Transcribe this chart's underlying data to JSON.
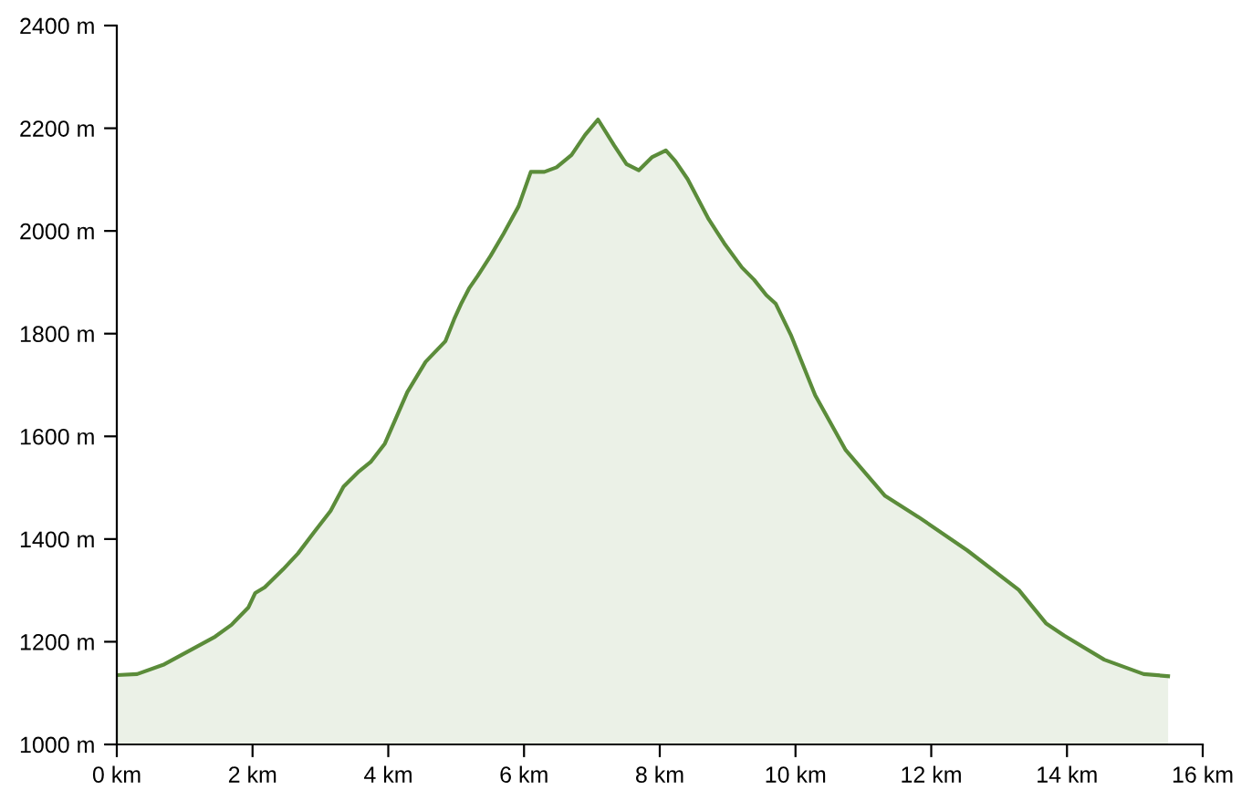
{
  "chart_data": {
    "type": "area",
    "series": [
      {
        "color": "#5b8c3a",
        "x": [
          0,
          0.3,
          0.7,
          1.06,
          1.45,
          1.69,
          1.94,
          2.04,
          2.18,
          2.45,
          2.67,
          2.9,
          3.15,
          3.34,
          3.57,
          3.74,
          3.95,
          4.28,
          4.55,
          4.84,
          4.97,
          5.08,
          5.19,
          5.32,
          5.51,
          5.7,
          5.92,
          6.1,
          6.3,
          6.48,
          6.7,
          6.9,
          7.09,
          7.33,
          7.51,
          7.69,
          7.89,
          8.09,
          8.23,
          8.41,
          8.72,
          8.95,
          9.21,
          9.39,
          9.57,
          9.71,
          9.93,
          10.29,
          10.74,
          11.32,
          11.81,
          12.53,
          13.29,
          13.69,
          13.96,
          14.55,
          15.13,
          15.49
        ],
        "values": [
          1135,
          1137,
          1156,
          1182,
          1210,
          1233,
          1267,
          1295,
          1306,
          1341,
          1372,
          1412,
          1455,
          1502,
          1532,
          1550,
          1586,
          1686,
          1745,
          1785,
          1828,
          1860,
          1888,
          1913,
          1952,
          1995,
          2048,
          2115,
          2115,
          2124,
          2148,
          2187,
          2217,
          2166,
          2130,
          2118,
          2144,
          2157,
          2136,
          2101,
          2023,
          1976,
          1929,
          1905,
          1875,
          1858,
          1798,
          1680,
          1573,
          1484,
          1443,
          1378,
          1301,
          1236,
          1212,
          1165,
          1137,
          1133
        ]
      }
    ],
    "xlim": [
      0,
      16
    ],
    "xticks": [
      {
        "value": 0,
        "label": "0 km"
      },
      {
        "value": 2,
        "label": "2 km"
      },
      {
        "value": 4,
        "label": "4 km"
      },
      {
        "value": 6,
        "label": "6 km"
      },
      {
        "value": 8,
        "label": "8 km"
      },
      {
        "value": 10,
        "label": "10 km"
      },
      {
        "value": 12,
        "label": "12 km"
      },
      {
        "value": 14,
        "label": "14 km"
      },
      {
        "value": 16,
        "label": "16 km"
      }
    ],
    "ylim": [
      1000,
      2400
    ],
    "yticks": [
      {
        "value": 1000,
        "label": "1000 m"
      },
      {
        "value": 1200,
        "label": "1200 m"
      },
      {
        "value": 1400,
        "label": "1400 m"
      },
      {
        "value": 1600,
        "label": "1600 m"
      },
      {
        "value": 1800,
        "label": "1800 m"
      },
      {
        "value": 2000,
        "label": "2000 m"
      },
      {
        "value": 2200,
        "label": "2200 m"
      },
      {
        "value": 2400,
        "label": "2400 m"
      }
    ],
    "grid": false
  }
}
